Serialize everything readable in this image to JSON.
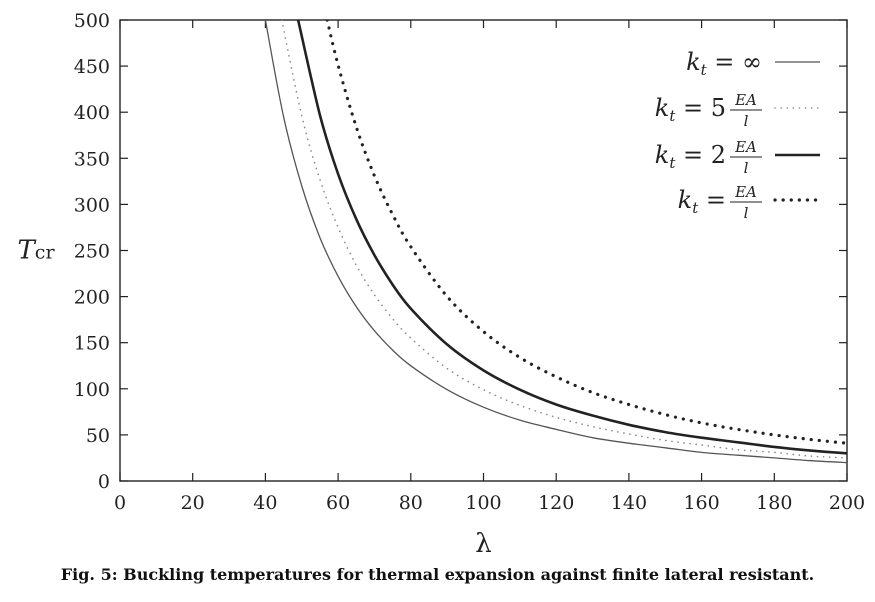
{
  "chart_data": {
    "type": "line",
    "title": "",
    "xlabel": "λ",
    "ylabel": "T_cr",
    "ylabel_main": "T",
    "ylabel_sub": "cr",
    "xlim": [
      0,
      200
    ],
    "ylim": [
      0,
      500
    ],
    "xticks": [
      0,
      20,
      40,
      60,
      80,
      100,
      120,
      140,
      160,
      180,
      200
    ],
    "yticks": [
      0,
      50,
      100,
      150,
      200,
      250,
      300,
      350,
      400,
      450,
      500
    ],
    "legend_position": "top-right",
    "grid": false,
    "series": [
      {
        "legend": {
          "lhs": "k",
          "sub": "t",
          "eq": "= ∞",
          "fraction": false,
          "coef": ""
        },
        "style": "solid-thin",
        "color": "#555555",
        "x": [
          40,
          45,
          50,
          55,
          60,
          65,
          70,
          75,
          80,
          90,
          100,
          110,
          120,
          130,
          140,
          150,
          160,
          170,
          180,
          190,
          200
        ],
        "y": [
          500,
          395,
          320,
          264,
          222,
          189,
          163,
          142,
          125,
          99,
          80,
          66,
          56,
          47,
          41,
          36,
          31,
          28,
          25,
          22,
          20
        ]
      },
      {
        "legend": {
          "lhs": "k",
          "sub": "t",
          "eq": "= 5",
          "fraction": true,
          "coef": "5",
          "num": "EA",
          "den": "l"
        },
        "style": "dotted-thin",
        "color": "#888888",
        "x": [
          44.5,
          50,
          55,
          60,
          65,
          70,
          75,
          80,
          90,
          100,
          110,
          120,
          130,
          140,
          150,
          160,
          170,
          180,
          190,
          200
        ],
        "y": [
          500,
          396,
          327,
          275,
          234,
          202,
          176,
          155,
          122,
          99,
          82,
          69,
          59,
          51,
          44,
          39,
          34,
          31,
          27,
          25
        ]
      },
      {
        "legend": {
          "lhs": "k",
          "sub": "t",
          "eq": "= 2",
          "fraction": true,
          "coef": "2",
          "num": "EA",
          "den": "l"
        },
        "style": "solid-thick",
        "color": "#222222",
        "x": [
          49,
          55,
          60,
          65,
          70,
          75,
          80,
          90,
          100,
          110,
          120,
          130,
          140,
          150,
          160,
          170,
          180,
          190,
          200
        ],
        "y": [
          500,
          397,
          333,
          284,
          245,
          213,
          187,
          148,
          120,
          99,
          83,
          71,
          61,
          53,
          47,
          42,
          37,
          33,
          30
        ]
      },
      {
        "legend": {
          "lhs": "k",
          "sub": "t",
          "eq": "=",
          "fraction": true,
          "coef": "",
          "num": "EA",
          "den": "l"
        },
        "style": "dotted-thick",
        "color": "#222222",
        "x": [
          57,
          60,
          65,
          70,
          75,
          80,
          90,
          100,
          110,
          120,
          130,
          140,
          150,
          160,
          170,
          180,
          190,
          200
        ],
        "y": [
          500,
          451,
          384,
          331,
          289,
          254,
          200,
          162,
          134,
          113,
          96,
          83,
          72,
          63,
          56,
          50,
          45,
          41
        ]
      }
    ]
  },
  "caption": "Fig. 5: Buckling temperatures for thermal expansion against finite lateral resistant."
}
